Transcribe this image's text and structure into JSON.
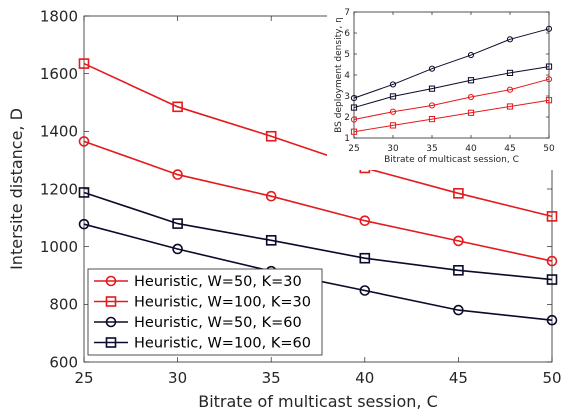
{
  "chart_data": [
    {
      "type": "line",
      "xlabel": "Bitrate of multicast session, C",
      "ylabel": "Intersite distance, D",
      "x": [
        25,
        30,
        35,
        40,
        45,
        50
      ],
      "xlim": [
        25,
        50
      ],
      "ylim": [
        600,
        1800
      ],
      "xticks": [
        "25",
        "30",
        "35",
        "40",
        "45",
        "50"
      ],
      "yticks": [
        "600",
        "800",
        "1000",
        "1200",
        "1400",
        "1600",
        "1800"
      ],
      "grid": false,
      "legend_position": "bottom-left",
      "series": [
        {
          "name": "Heuristic, W=50,   K=30",
          "color": "#e41a1c",
          "marker": "circle",
          "values": [
            1365,
            1250,
            1175,
            1090,
            1020,
            950
          ]
        },
        {
          "name": "Heuristic, W=100, K=30",
          "color": "#e41a1c",
          "marker": "square",
          "values": [
            1635,
            1485,
            1383,
            1273,
            1185,
            1105
          ]
        },
        {
          "name": "Heuristic, W=50,   K=60",
          "color": "#0a0a2a",
          "marker": "circle",
          "values": [
            1078,
            992,
            915,
            848,
            780,
            745
          ]
        },
        {
          "name": "Heuristic, W=100, K=60",
          "color": "#0a0a2a",
          "marker": "square",
          "values": [
            1188,
            1080,
            1022,
            960,
            918,
            886
          ]
        }
      ]
    },
    {
      "type": "line",
      "xlabel": "Bitrate of multicast session, C",
      "ylabel": "BS deployment density, η",
      "x": [
        25,
        30,
        35,
        40,
        45,
        50
      ],
      "xlim": [
        25,
        50
      ],
      "ylim": [
        1,
        7
      ],
      "xticks": [
        "25",
        "30",
        "35",
        "40",
        "45",
        "50"
      ],
      "yticks": [
        "1",
        "2",
        "3",
        "4",
        "5",
        "6",
        "7"
      ],
      "grid": false,
      "series": [
        {
          "color": "#0a0a2a",
          "marker": "circle",
          "values": [
            2.9,
            3.55,
            4.3,
            4.95,
            5.7,
            6.2
          ]
        },
        {
          "color": "#0a0a2a",
          "marker": "square",
          "values": [
            2.45,
            2.98,
            3.35,
            3.75,
            4.1,
            4.4
          ]
        },
        {
          "color": "#e41a1c",
          "marker": "circle",
          "values": [
            1.88,
            2.25,
            2.55,
            2.95,
            3.3,
            3.8
          ]
        },
        {
          "color": "#e41a1c",
          "marker": "square",
          "values": [
            1.3,
            1.6,
            1.9,
            2.2,
            2.5,
            2.8
          ]
        }
      ]
    }
  ]
}
